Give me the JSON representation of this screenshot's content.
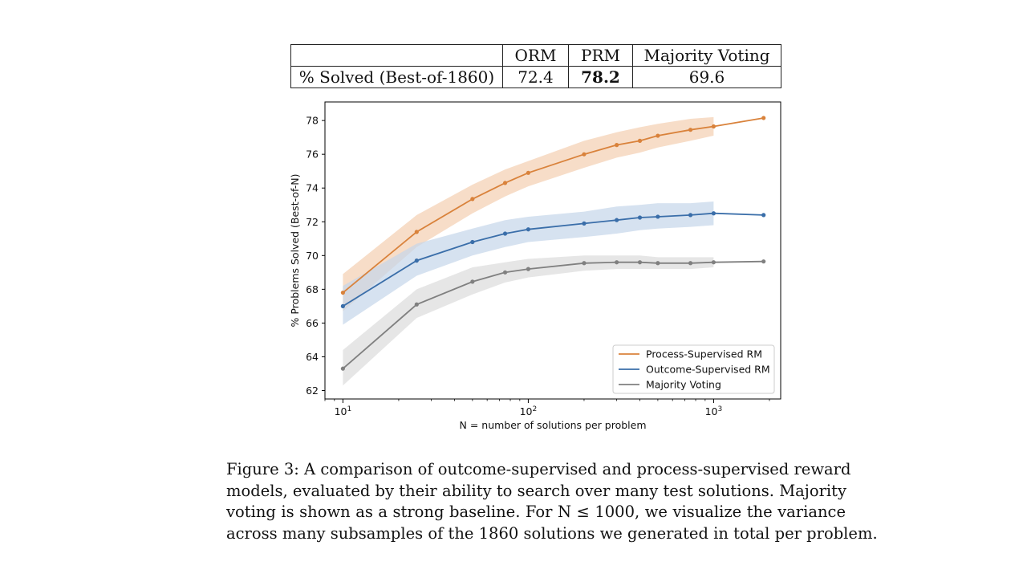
{
  "table": {
    "headers": [
      "",
      "ORM",
      "PRM",
      "Majority Voting"
    ],
    "row_label": "% Solved (Best-of-1860)",
    "values": [
      "72.4",
      "78.2",
      "69.6"
    ],
    "bold_index": 1
  },
  "chart_data": {
    "type": "line",
    "title": "",
    "xlabel": "N = number of solutions per problem",
    "ylabel": "% Problems Solved (Best-of-N)",
    "x_scale": "log",
    "xlim": [
      8,
      2300
    ],
    "ylim": [
      61.5,
      79.1
    ],
    "x_ticks": [
      {
        "value": 10,
        "base": "10",
        "exp": "1"
      },
      {
        "value": 100,
        "base": "10",
        "exp": "2"
      },
      {
        "value": 1000,
        "base": "10",
        "exp": "3"
      }
    ],
    "y_ticks": [
      62,
      64,
      66,
      68,
      70,
      72,
      74,
      76,
      78
    ],
    "grid": false,
    "legend_position": "lower-right",
    "x": [
      10,
      25,
      50,
      75,
      100,
      200,
      300,
      400,
      500,
      750,
      1000,
      1860
    ],
    "series": [
      {
        "name": "Process-Supervised RM",
        "color": "#d9823b",
        "band_color": "#f4cfb0",
        "values": [
          67.8,
          71.4,
          73.35,
          74.3,
          74.9,
          76.0,
          76.55,
          76.8,
          77.1,
          77.45,
          77.65,
          78.15
        ],
        "band_low": [
          66.7,
          70.5,
          72.5,
          73.5,
          74.1,
          75.2,
          75.8,
          76.1,
          76.4,
          76.8,
          77.1
        ],
        "band_high": [
          68.9,
          72.4,
          74.2,
          75.1,
          75.6,
          76.8,
          77.3,
          77.6,
          77.8,
          78.1,
          78.2
        ]
      },
      {
        "name": "Outcome-Supervised RM",
        "color": "#3a6ea9",
        "band_color": "#c5d5ea",
        "values": [
          67.0,
          69.7,
          70.8,
          71.3,
          71.55,
          71.9,
          72.1,
          72.25,
          72.3,
          72.4,
          72.5,
          72.4
        ],
        "band_low": [
          65.9,
          68.8,
          70.0,
          70.5,
          70.8,
          71.1,
          71.3,
          71.5,
          71.6,
          71.7,
          71.8
        ],
        "band_high": [
          68.2,
          70.7,
          71.6,
          72.1,
          72.3,
          72.6,
          72.9,
          73.0,
          73.1,
          73.1,
          73.2
        ]
      },
      {
        "name": "Majority Voting",
        "color": "#808080",
        "band_color": "#dcdcdc",
        "values": [
          63.3,
          67.1,
          68.45,
          69.0,
          69.2,
          69.55,
          69.6,
          69.6,
          69.55,
          69.55,
          69.6,
          69.65
        ],
        "band_low": [
          62.3,
          66.3,
          67.7,
          68.4,
          68.7,
          69.1,
          69.2,
          69.2,
          69.2,
          69.2,
          69.3
        ],
        "band_high": [
          64.4,
          68.0,
          69.3,
          69.6,
          69.8,
          70.0,
          70.0,
          70.0,
          69.9,
          69.9,
          69.9
        ]
      }
    ]
  },
  "caption": {
    "lines": [
      "Figure 3: A comparison of outcome-supervised and process-supervised reward",
      "models, evaluated by their ability to search over many test solutions. Majority",
      "voting is shown as a strong baseline. For N ≤ 1000, we visualize the variance",
      "across many subsamples of the 1860 solutions we generated in total per problem."
    ]
  }
}
